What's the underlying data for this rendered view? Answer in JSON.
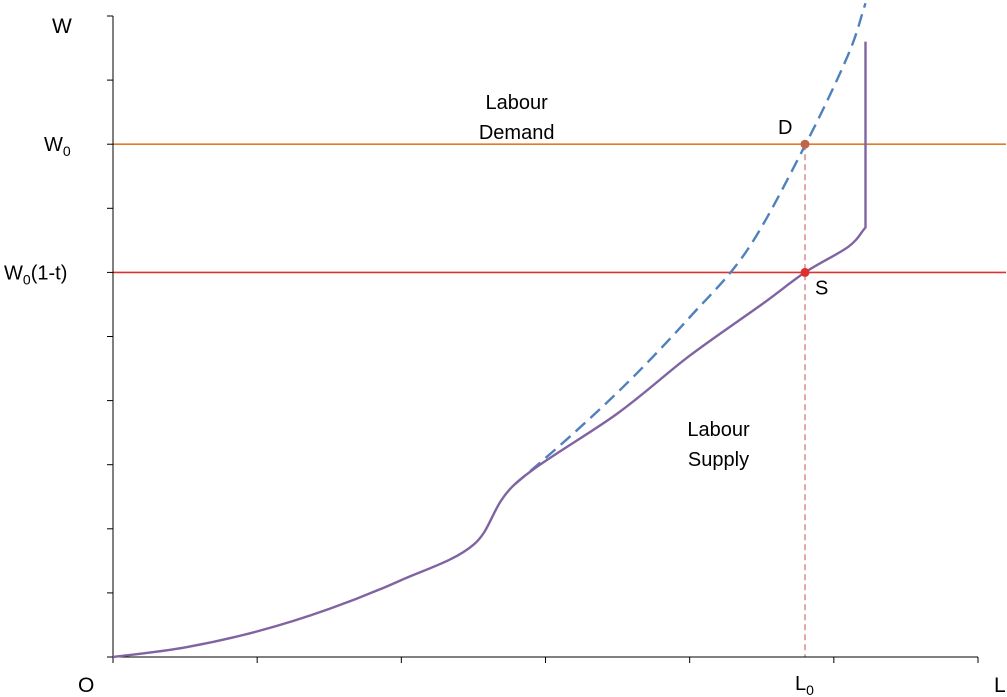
{
  "chart_data": {
    "type": "line",
    "title": "",
    "xlabel": "L",
    "ylabel": "W",
    "origin_label": "O",
    "xlim": [
      0,
      6
    ],
    "ylim": [
      0,
      10
    ],
    "x_ticks_minor": [
      0,
      1,
      2,
      3,
      4,
      5,
      6
    ],
    "y_ticks_minor": [
      0,
      1,
      2,
      3,
      4,
      5,
      6,
      7,
      8,
      9,
      10
    ],
    "x_tick_labels": [
      {
        "x": 4.8,
        "text": "L",
        "sub": "0"
      }
    ],
    "y_tick_labels": [
      {
        "y": 8,
        "text": "W",
        "sub": "0",
        "suffix": ""
      },
      {
        "y": 6,
        "text": "W",
        "sub": "0",
        "suffix": "(1-t)"
      }
    ],
    "grid": false,
    "legend": "none",
    "series": [
      {
        "role": "demand-curve",
        "color": "#4f81bd",
        "dash": "dashed",
        "points": [
          [
            2.79,
            2.7
          ],
          [
            3.2,
            3.5
          ],
          [
            3.6,
            4.35
          ],
          [
            4.0,
            5.3
          ],
          [
            4.4,
            6.35
          ],
          [
            4.8,
            7.98
          ],
          [
            5.1,
            9.4
          ],
          [
            5.22,
            10.2
          ]
        ]
      },
      {
        "role": "supply-curve",
        "color": "#8064a2",
        "dash": "solid",
        "points": [
          [
            0,
            0
          ],
          [
            0.5,
            0.15
          ],
          [
            1.0,
            0.4
          ],
          [
            1.5,
            0.75
          ],
          [
            2.0,
            1.2
          ],
          [
            2.5,
            1.75
          ],
          [
            2.79,
            2.7
          ],
          [
            3.5,
            3.8
          ],
          [
            4.0,
            4.7
          ],
          [
            4.5,
            5.5
          ],
          [
            4.8,
            6.0
          ],
          [
            5.1,
            6.4
          ],
          [
            5.22,
            6.7
          ],
          [
            5.22,
            9.6
          ]
        ]
      }
    ],
    "horizontal_lines": [
      {
        "role": "demand-wage-line",
        "y": 8,
        "color": "#e27b24"
      },
      {
        "role": "supply-wage-line",
        "y": 6,
        "color": "#e0302e"
      }
    ],
    "vertical_lines": [
      {
        "role": "l0-guide",
        "x": 4.8,
        "from_y": 0,
        "to_y": 8,
        "color": "#c0504d",
        "dash": "dashed"
      }
    ],
    "points": [
      {
        "role": "point-d",
        "label": "D",
        "x": 4.8,
        "y": 8,
        "color": "#c0644a"
      },
      {
        "role": "point-s",
        "label": "S",
        "x": 4.8,
        "y": 6,
        "color": "#e0302e"
      }
    ],
    "annotations": [
      {
        "role": "labour-demand-label",
        "lines": [
          "Labour",
          "Demand"
        ],
        "x": 2.8,
        "y": 8.55
      },
      {
        "role": "labour-supply-label",
        "lines": [
          "Labour",
          "Supply"
        ],
        "x": 4.2,
        "y": 3.45
      }
    ]
  }
}
